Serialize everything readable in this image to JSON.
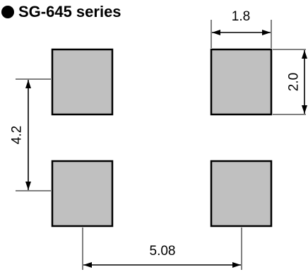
{
  "title": "SG-645 series",
  "pads": [
    {
      "name": "pad-top-left"
    },
    {
      "name": "pad-top-right"
    },
    {
      "name": "pad-bottom-left"
    },
    {
      "name": "pad-bottom-right"
    }
  ],
  "dimensions": {
    "pad_width": "1.8",
    "pad_height": "2.0",
    "vertical_pitch": "4.2",
    "horizontal_pitch": "5.08"
  },
  "colors": {
    "pad_fill": "#c0c0c0",
    "line": "#000000"
  }
}
